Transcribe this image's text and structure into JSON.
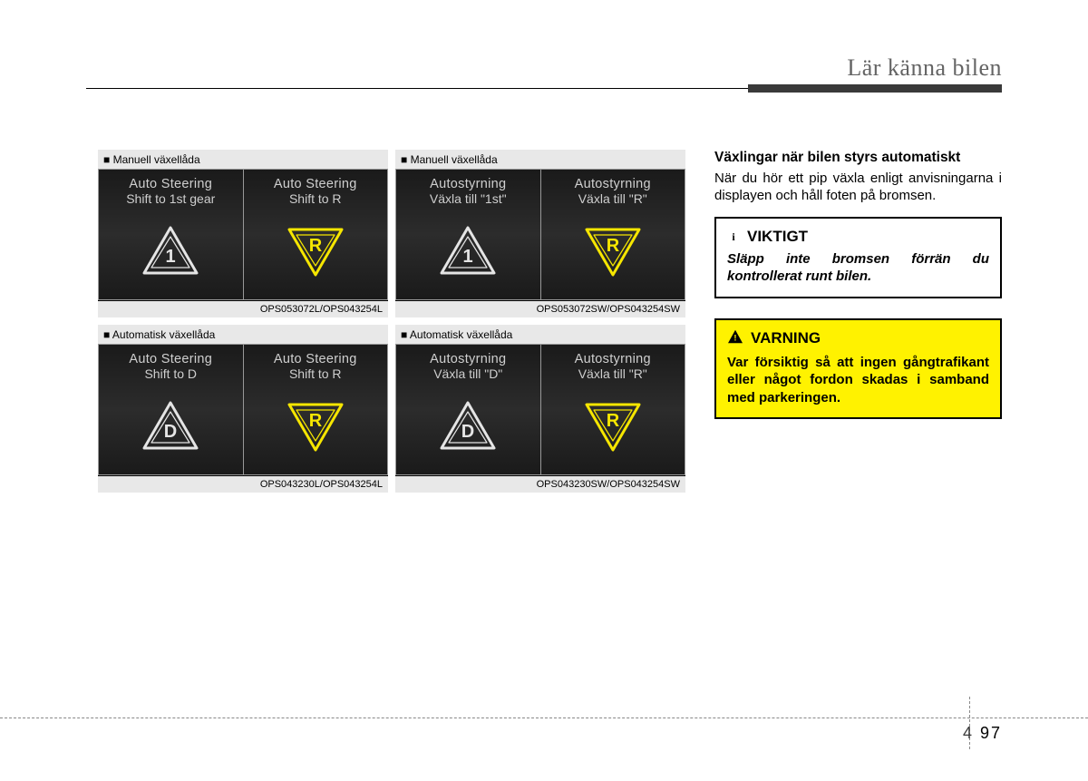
{
  "header": {
    "title": "Lär känna bilen"
  },
  "footer": {
    "chapter": "4",
    "page": "97"
  },
  "panels": [
    {
      "label": "■ Manuell växellåda",
      "ref": "OPS053072L/OPS043254L",
      "screens": [
        {
          "title": "Auto Steering",
          "sub": "Shift to 1st gear",
          "symbol": "1",
          "dir": "up",
          "stroke": "#e5e5e5"
        },
        {
          "title": "Auto Steering",
          "sub": "Shift to R",
          "symbol": "R",
          "dir": "down",
          "stroke": "#f6e600"
        }
      ]
    },
    {
      "label": "■ Manuell växellåda",
      "ref": "OPS053072SW/OPS043254SW",
      "screens": [
        {
          "title": "Autostyrning",
          "sub": "Växla till \"1st\"",
          "symbol": "1",
          "dir": "up",
          "stroke": "#e5e5e5"
        },
        {
          "title": "Autostyrning",
          "sub": "Växla till \"R\"",
          "symbol": "R",
          "dir": "down",
          "stroke": "#f6e600"
        }
      ]
    },
    {
      "label": "■ Automatisk växellåda",
      "ref": "OPS043230L/OPS043254L",
      "screens": [
        {
          "title": "Auto Steering",
          "sub": "Shift to D",
          "symbol": "D",
          "dir": "up",
          "stroke": "#e5e5e5"
        },
        {
          "title": "Auto Steering",
          "sub": "Shift to R",
          "symbol": "R",
          "dir": "down",
          "stroke": "#f6e600"
        }
      ]
    },
    {
      "label": "■ Automatisk växellåda",
      "ref": "OPS043230SW/OPS043254SW",
      "screens": [
        {
          "title": "Autostyrning",
          "sub": "Växla till \"D\"",
          "symbol": "D",
          "dir": "up",
          "stroke": "#e5e5e5"
        },
        {
          "title": "Autostyrning",
          "sub": "Växla till \"R\"",
          "symbol": "R",
          "dir": "down",
          "stroke": "#f6e600"
        }
      ]
    }
  ],
  "right": {
    "subheading": "Växlingar när bilen styrs automatiskt",
    "body": "När du hör ett pip växla enligt anvisningarna i displayen och håll foten på bromsen.",
    "viktigt": {
      "title": "VIKTIGT",
      "icon": "i",
      "text": "Släpp inte bromsen förrän du kontrollerat runt bilen."
    },
    "varning": {
      "title": "VARNING",
      "text": "Var försiktig så att ingen gångtrafikant eller något fordon skadas i samband med parkeringen."
    }
  },
  "style": {
    "screen_text_color": "#cfcfcf",
    "warning_bg": "#fff200",
    "triangle_stroke_width": 3
  }
}
